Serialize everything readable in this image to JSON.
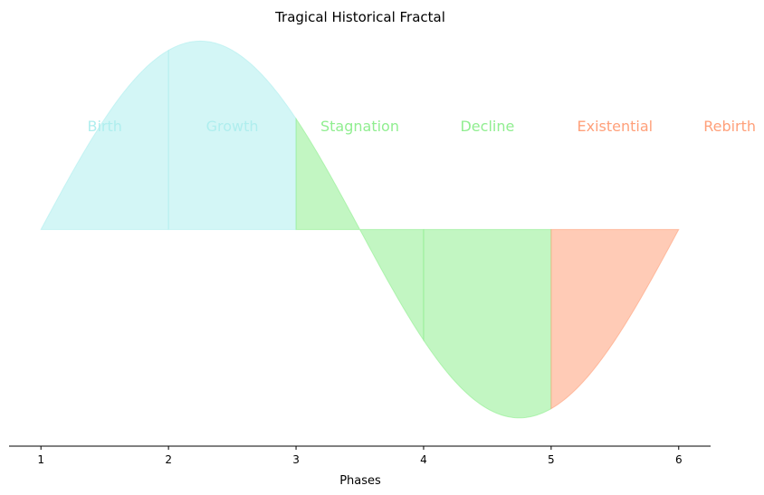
{
  "chart_data": {
    "type": "area",
    "title": "Tragical Historical Fractal",
    "xlabel": "Phases",
    "ylabel": "",
    "xlim": [
      0.75,
      6.25
    ],
    "ylim": [
      -1.15,
      1.05
    ],
    "xticks": [
      1,
      2,
      3,
      4,
      5,
      6
    ],
    "curve": "sine over x from 1 to 6, peak near x=2.25, zero near x=3.5, trough near x=4.75",
    "segments": [
      {
        "name": "Birth",
        "x_start": 1,
        "x_end": 2,
        "color": "#afeeee"
      },
      {
        "name": "Growth",
        "x_start": 2,
        "x_end": 3,
        "color": "#afeeee"
      },
      {
        "name": "Stagnation",
        "x_start": 3,
        "x_end": 4,
        "color": "#90ee90"
      },
      {
        "name": "Decline",
        "x_start": 4,
        "x_end": 5,
        "color": "#90ee90"
      },
      {
        "name": "Existential",
        "x_start": 5,
        "x_end": 6,
        "color": "#ffa07a"
      }
    ],
    "phase_labels": [
      {
        "text": "Birth",
        "x": 1.5,
        "color": "#afeeee"
      },
      {
        "text": "Growth",
        "x": 2.5,
        "color": "#afeeee"
      },
      {
        "text": "Stagnation",
        "x": 3.5,
        "color": "#90ee90"
      },
      {
        "text": "Decline",
        "x": 4.5,
        "color": "#90ee90"
      },
      {
        "text": "Existential",
        "x": 5.5,
        "color": "#ffa07a"
      },
      {
        "text": "Rebirth",
        "x": 6.4,
        "color": "#ffa07a"
      }
    ],
    "label_y": 0.55,
    "grid": false,
    "legend": "none"
  }
}
